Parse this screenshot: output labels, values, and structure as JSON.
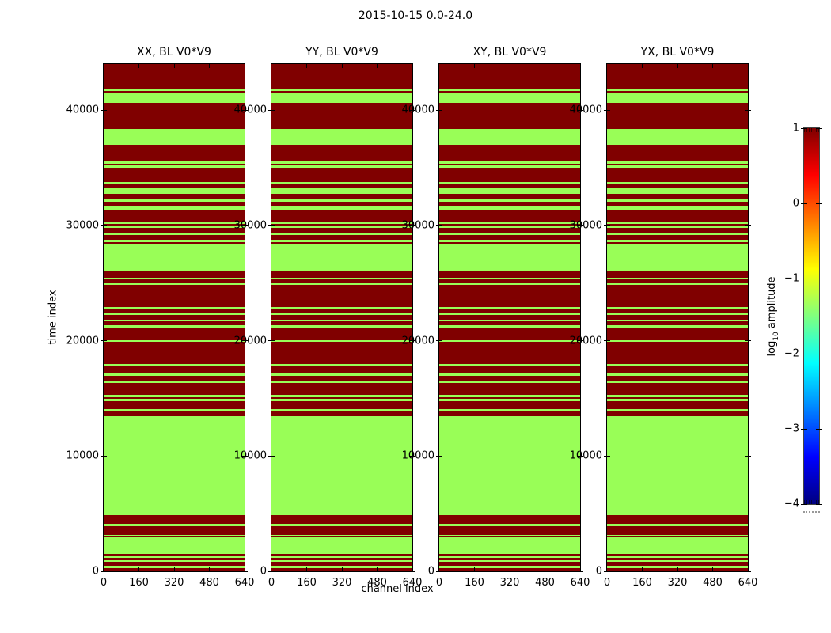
{
  "figure": {
    "title": "2015-10-15 0.0-24.0"
  },
  "panels": [
    {
      "title": "XX, BL V0*V9"
    },
    {
      "title": "YY, BL V0*V9"
    },
    {
      "title": "XY, BL V0*V9"
    },
    {
      "title": "YX, BL V0*V9"
    }
  ],
  "axes": {
    "xlabel": "channel index",
    "ylabel": "time index",
    "xticks": [
      "0",
      "160",
      "320",
      "480",
      "640"
    ],
    "yticks": [
      "0",
      "10000",
      "20000",
      "30000",
      "40000"
    ]
  },
  "colorbar": {
    "label_prefix": "log",
    "label_sub": "10",
    "label_suffix": " amplitude",
    "ticks": [
      "1",
      "0",
      "−1",
      "−2",
      "−3",
      "−4"
    ]
  },
  "chart_data": {
    "type": "heatmap",
    "title": "2015-10-15 0.0-24.0",
    "xlabel": "channel index",
    "ylabel": "time index",
    "xlim": [
      0,
      640
    ],
    "ylim": [
      0,
      44000
    ],
    "xticks": [
      0,
      160,
      320,
      480,
      640
    ],
    "yticks": [
      0,
      10000,
      20000,
      30000,
      40000
    ],
    "panels": [
      "XX, BL V0*V9",
      "YY, BL V0*V9",
      "XY, BL V0*V9",
      "YX, BL V0*V9"
    ],
    "colorbar": {
      "label": "log10 amplitude",
      "cmap": "jet",
      "vmin": -4,
      "vmax": 1,
      "ticks": [
        1,
        0,
        -1,
        -2,
        -3,
        -4
      ]
    },
    "high_amplitude_color": "#800000",
    "low_amplitude_color": "#99fe57",
    "high_amplitude_value": 1,
    "low_amplitude_value": -1.3,
    "note": "All four panels show the identical pattern: uniform horizontal bands spanning the full channel range 0-640. Background is high amplitude (dark red, ~1); listed bands are low amplitude (light green, ~-1.3).",
    "green_bands_time": [
      [
        274,
        500
      ],
      [
        822,
        959
      ],
      [
        1144,
        1281
      ],
      [
        1507,
        2945
      ],
      [
        3013,
        3171
      ],
      [
        3924,
        4088
      ],
      [
        4862,
        13423
      ],
      [
        13880,
        14085
      ],
      [
        14791,
        14949
      ],
      [
        15134,
        15292
      ],
      [
        16367,
        16524
      ],
      [
        16983,
        17140
      ],
      [
        17784,
        18010
      ],
      [
        19907,
        20065
      ],
      [
        21092,
        21318
      ],
      [
        21660,
        21824
      ],
      [
        22234,
        22392
      ],
      [
        22755,
        22919
      ],
      [
        24835,
        24972
      ],
      [
        25356,
        25493
      ],
      [
        25998,
        28347
      ],
      [
        28587,
        28738
      ],
      [
        29169,
        29327
      ],
      [
        29785,
        30018
      ],
      [
        30155,
        30319
      ],
      [
        31402,
        31730
      ],
      [
        32073,
        32306
      ],
      [
        32758,
        33216
      ],
      [
        33607,
        33785
      ],
      [
        35031,
        35202
      ],
      [
        35374,
        35545
      ],
      [
        36984,
        38354
      ],
      [
        40634,
        41483
      ],
      [
        41640,
        41900
      ]
    ]
  }
}
